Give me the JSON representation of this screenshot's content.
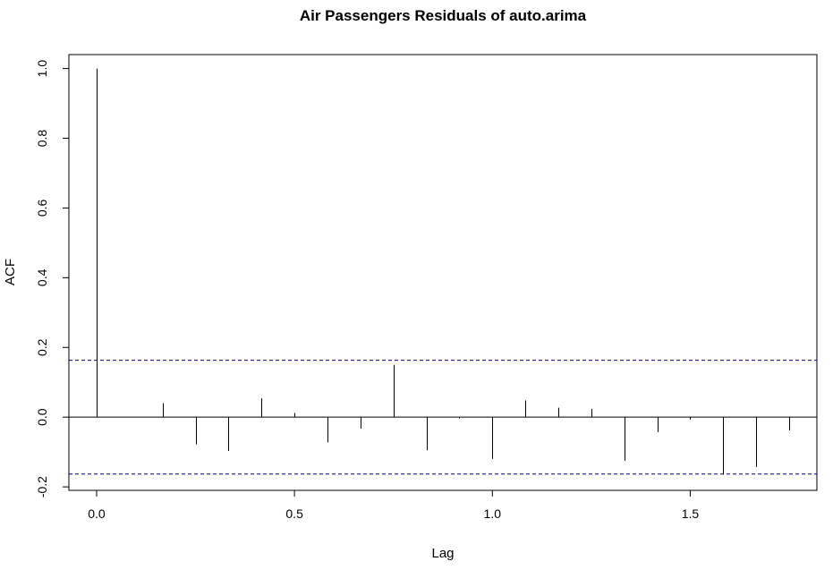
{
  "chart_data": {
    "type": "bar",
    "title": "Air Passengers Residuals of auto.arima",
    "xlabel": "Lag",
    "ylabel": "ACF",
    "xlim": [
      -0.07,
      1.82
    ],
    "ylim": [
      -0.21,
      1.04
    ],
    "x_ticks": [
      "0.0",
      "0.5",
      "1.0",
      "1.5"
    ],
    "y_ticks": [
      "-0.2",
      "0.0",
      "0.2",
      "0.4",
      "0.6",
      "0.8",
      "1.0"
    ],
    "ci_bound": 0.163,
    "ci_color": "#00008B",
    "lags": [
      0,
      0.0833,
      0.1667,
      0.25,
      0.3333,
      0.4167,
      0.5,
      0.5833,
      0.6667,
      0.75,
      0.8333,
      0.9167,
      1.0,
      1.0833,
      1.1667,
      1.25,
      1.3333,
      1.4167,
      1.5,
      1.5833,
      1.6667,
      1.75
    ],
    "acf": [
      1.0,
      0.0,
      0.04,
      -0.078,
      -0.097,
      0.054,
      0.012,
      -0.072,
      -0.033,
      0.15,
      -0.095,
      -0.004,
      -0.12,
      0.048,
      0.027,
      0.024,
      -0.125,
      -0.043,
      -0.007,
      -0.165,
      -0.143,
      -0.038
    ],
    "grid": false,
    "legend": "none"
  }
}
